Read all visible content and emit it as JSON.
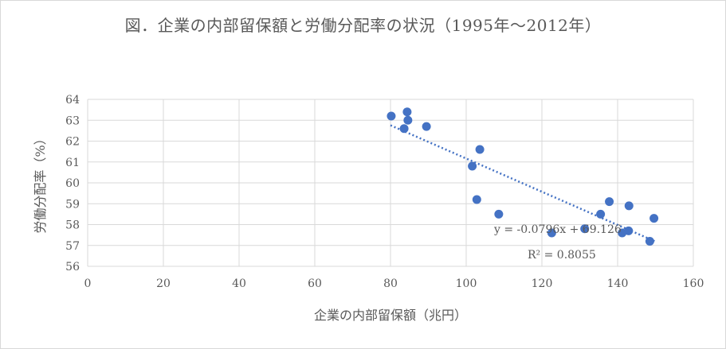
{
  "chart_data": {
    "type": "scatter",
    "title": "図．企業の内部留保額と労働分配率の状況（1995年～2012年）",
    "xlabel": "企業の内部留保額（兆円）",
    "ylabel": "労働分配率（%）",
    "xlim": [
      0,
      160
    ],
    "ylim": [
      56,
      64
    ],
    "x_ticks": [
      "0",
      "20",
      "40",
      "60",
      "80",
      "100",
      "120",
      "140",
      "160"
    ],
    "y_ticks": [
      "56",
      "57",
      "58",
      "59",
      "60",
      "61",
      "62",
      "63",
      "64"
    ],
    "grid": true,
    "point_color": "#4472c4",
    "trend_color": "#4472c4",
    "points": [
      {
        "x": 80.2,
        "y": 63.2
      },
      {
        "x": 84.4,
        "y": 63.4
      },
      {
        "x": 84.6,
        "y": 63.0
      },
      {
        "x": 83.6,
        "y": 62.6
      },
      {
        "x": 89.5,
        "y": 62.7
      },
      {
        "x": 103.6,
        "y": 61.6
      },
      {
        "x": 101.6,
        "y": 60.8
      },
      {
        "x": 102.8,
        "y": 59.2
      },
      {
        "x": 108.6,
        "y": 58.5
      },
      {
        "x": 122.6,
        "y": 57.6
      },
      {
        "x": 131.3,
        "y": 57.8
      },
      {
        "x": 135.5,
        "y": 58.5
      },
      {
        "x": 137.8,
        "y": 59.1
      },
      {
        "x": 141.2,
        "y": 57.6
      },
      {
        "x": 142.9,
        "y": 57.7
      },
      {
        "x": 143.0,
        "y": 58.9
      },
      {
        "x": 148.5,
        "y": 57.2
      },
      {
        "x": 149.6,
        "y": 58.3
      }
    ],
    "trendline": {
      "slope": -0.0796,
      "intercept": 69.126,
      "x_range": [
        80,
        150
      ],
      "equation": "y = -0.0796x + 69.126",
      "r_squared": "R² = 0.8055"
    }
  }
}
